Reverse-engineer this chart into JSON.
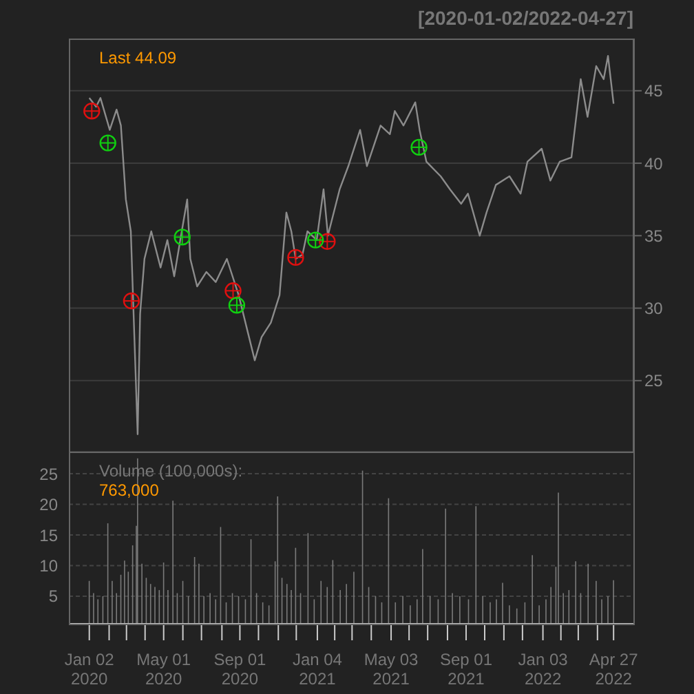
{
  "chart_data": [
    {
      "type": "line",
      "title": "[2020-01-02/2022-04-27]",
      "annotations": [
        "Last 44.09"
      ],
      "xlim": [
        "2019-11-30",
        "2022-05-29"
      ],
      "ylim": [
        20.1,
        48.6
      ],
      "yticks": [
        25,
        30,
        35,
        40,
        45
      ],
      "grid": "y",
      "tick_labels": "y",
      "series": [
        {
          "type": "line",
          "color": "#8c8c8c",
          "marker": "none",
          "x": [
            "2020-01-02",
            "2020-01-13",
            "2020-01-20",
            "2020-02-04",
            "2020-02-15",
            "2020-02-22",
            "2020-03-01",
            "2020-03-09",
            "2020-03-20",
            "2020-03-24",
            "2020-03-31",
            "2020-04-11",
            "2020-04-26",
            "2020-05-07",
            "2020-05-18",
            "2020-05-29",
            "2020-06-08",
            "2020-06-13",
            "2020-06-24",
            "2020-07-09",
            "2020-07-24",
            "2020-08-11",
            "2020-08-30",
            "2020-09-14",
            "2020-09-25",
            "2020-10-06",
            "2020-10-21",
            "2020-11-04",
            "2020-11-15",
            "2020-11-23",
            "2020-11-30",
            "2020-12-11",
            "2020-12-19",
            "2021-01-03",
            "2021-01-14",
            "2021-01-21",
            "2021-02-09",
            "2021-02-23",
            "2021-03-14",
            "2021-03-25",
            "2021-04-16",
            "2021-05-01",
            "2021-05-09",
            "2021-05-23",
            "2021-06-11",
            "2021-06-18",
            "2021-06-29",
            "2021-07-22",
            "2021-08-06",
            "2021-08-24",
            "2021-09-04",
            "2021-09-23",
            "2021-10-04",
            "2021-10-19",
            "2021-11-10",
            "2021-11-28",
            "2021-12-09",
            "2022-01-01",
            "2022-01-15",
            "2022-01-30",
            "2022-02-18",
            "2022-03-05",
            "2022-03-16",
            "2022-03-30",
            "2022-04-11",
            "2022-04-18",
            "2022-04-27"
          ],
          "values": [
            44.5,
            43.9,
            44.5,
            42.3,
            43.7,
            42.6,
            37.5,
            35.3,
            21.3,
            29.6,
            33.4,
            35.3,
            32.8,
            34.7,
            32.2,
            35.0,
            37.5,
            33.4,
            31.5,
            32.5,
            31.8,
            33.4,
            30.9,
            28.3,
            26.4,
            28.0,
            29.0,
            30.9,
            36.6,
            35.3,
            33.4,
            33.7,
            35.3,
            34.7,
            38.2,
            35.0,
            38.2,
            39.8,
            42.3,
            39.8,
            42.6,
            42.0,
            43.6,
            42.6,
            44.2,
            42.3,
            40.1,
            39.1,
            38.2,
            37.2,
            37.9,
            35.0,
            36.6,
            38.5,
            39.1,
            37.9,
            40.1,
            41.0,
            38.8,
            40.1,
            40.4,
            45.8,
            43.2,
            46.7,
            45.8,
            47.4,
            44.1
          ]
        },
        {
          "type": "scatter",
          "color": "#e01010",
          "marker": "circle",
          "x": [
            "2020-01-06",
            "2020-03-10",
            "2020-08-21",
            "2020-11-30",
            "2021-01-20"
          ],
          "values": [
            43.6,
            30.5,
            31.2,
            33.5,
            34.6
          ]
        },
        {
          "type": "scatter",
          "color": "#10d010",
          "marker": "circle",
          "x": [
            "2020-02-01",
            "2020-05-31",
            "2020-08-27",
            "2021-01-01",
            "2021-06-17"
          ],
          "values": [
            41.4,
            34.9,
            30.2,
            34.7,
            41.1
          ]
        }
      ]
    },
    {
      "type": "bar",
      "annotations": [
        "Volume (100,000s):",
        "763,000"
      ],
      "xlim": [
        "2019-11-30",
        "2022-05-29"
      ],
      "ylim": [
        0.5,
        28.6
      ],
      "yticks": [
        5,
        10,
        15,
        20,
        25
      ],
      "grid": "y",
      "color": "#7a7a7a",
      "xticks": [
        {
          "value": "2020-01-02",
          "label": "Jan 02\n2020"
        },
        {
          "value": "2020-02-03",
          "label": null
        },
        {
          "value": "2020-03-02",
          "label": null
        },
        {
          "value": "2020-04-01",
          "label": null
        },
        {
          "value": "2020-05-01",
          "label": "May 01\n2020"
        },
        {
          "value": "2020-06-01",
          "label": null
        },
        {
          "value": "2020-07-01",
          "label": null
        },
        {
          "value": "2020-08-03",
          "label": null
        },
        {
          "value": "2020-09-01",
          "label": "Sep 01\n2020"
        },
        {
          "value": "2020-10-01",
          "label": null
        },
        {
          "value": "2020-11-02",
          "label": null
        },
        {
          "value": "2020-12-01",
          "label": null
        },
        {
          "value": "2021-01-04",
          "label": "Jan 04\n2021"
        },
        {
          "value": "2021-02-01",
          "label": null
        },
        {
          "value": "2021-03-01",
          "label": null
        },
        {
          "value": "2021-04-01",
          "label": null
        },
        {
          "value": "2021-05-03",
          "label": "May 03\n2021"
        },
        {
          "value": "2021-06-01",
          "label": null
        },
        {
          "value": "2021-07-01",
          "label": null
        },
        {
          "value": "2021-08-02",
          "label": null
        },
        {
          "value": "2021-09-01",
          "label": "Sep 01\n2021"
        },
        {
          "value": "2021-10-01",
          "label": null
        },
        {
          "value": "2021-11-01",
          "label": null
        },
        {
          "value": "2021-12-01",
          "label": null
        },
        {
          "value": "2022-01-03",
          "label": "Jan 03\n2022"
        },
        {
          "value": "2022-02-01",
          "label": null
        },
        {
          "value": "2022-03-01",
          "label": null
        },
        {
          "value": "2022-04-01",
          "label": null
        },
        {
          "value": "2022-04-27",
          "label": "Apr 27\n2022"
        }
      ],
      "x": [
        "2020-01-02",
        "2020-01-09",
        "2020-01-16",
        "2020-01-24",
        "2020-02-01",
        "2020-02-08",
        "2020-02-15",
        "2020-02-22",
        "2020-02-28",
        "2020-03-05",
        "2020-03-12",
        "2020-03-18",
        "2020-03-20",
        "2020-03-27",
        "2020-04-03",
        "2020-04-10",
        "2020-04-17",
        "2020-04-24",
        "2020-05-01",
        "2020-05-08",
        "2020-05-16",
        "2020-05-23",
        "2020-06-01",
        "2020-06-10",
        "2020-06-20",
        "2020-06-27",
        "2020-07-05",
        "2020-07-15",
        "2020-07-24",
        "2020-08-01",
        "2020-08-10",
        "2020-08-20",
        "2020-08-30",
        "2020-09-10",
        "2020-09-19",
        "2020-09-28",
        "2020-10-08",
        "2020-10-18",
        "2020-10-28",
        "2020-11-01",
        "2020-11-08",
        "2020-11-16",
        "2020-11-23",
        "2020-11-30",
        "2020-12-08",
        "2020-12-20",
        "2020-12-30",
        "2021-01-10",
        "2021-01-20",
        "2021-01-29",
        "2021-02-10",
        "2021-02-20",
        "2021-03-04",
        "2021-03-18",
        "2021-03-28",
        "2021-04-08",
        "2021-04-18",
        "2021-04-29",
        "2021-05-10",
        "2021-05-22",
        "2021-06-03",
        "2021-06-14",
        "2021-06-23",
        "2021-07-05",
        "2021-07-18",
        "2021-07-30",
        "2021-08-10",
        "2021-08-22",
        "2021-09-05",
        "2021-09-17",
        "2021-09-28",
        "2021-10-10",
        "2021-10-20",
        "2021-10-30",
        "2021-11-10",
        "2021-11-22",
        "2021-12-05",
        "2021-12-17",
        "2021-12-28",
        "2022-01-08",
        "2022-01-16",
        "2022-01-24",
        "2022-01-28",
        "2022-02-05",
        "2022-02-14",
        "2022-02-25",
        "2022-03-05",
        "2022-03-17",
        "2022-03-30",
        "2022-04-08",
        "2022-04-18",
        "2022-04-27"
      ],
      "values": [
        7.5,
        5.5,
        4.5,
        5.0,
        16.9,
        7.5,
        5.5,
        8.5,
        10.8,
        9.0,
        13.3,
        16.5,
        27.5,
        10.3,
        8.0,
        7.0,
        6.5,
        6.0,
        10.5,
        6.0,
        20.6,
        5.5,
        7.5,
        5.0,
        11.4,
        10.3,
        5.0,
        5.5,
        4.5,
        16.3,
        4.0,
        5.5,
        5.0,
        4.5,
        14.3,
        5.5,
        4.0,
        3.5,
        10.7,
        21.3,
        8.0,
        7.0,
        6.0,
        12.9,
        5.5,
        15.3,
        4.5,
        7.5,
        6.5,
        10.9,
        6.0,
        7.0,
        9.0,
        25.5,
        6.5,
        5.0,
        4.0,
        21.0,
        4.0,
        5.0,
        3.5,
        4.5,
        12.7,
        5.0,
        4.5,
        19.3,
        5.5,
        5.0,
        4.5,
        19.7,
        5.0,
        4.0,
        4.5,
        7.2,
        3.5,
        3.0,
        4.0,
        11.7,
        3.5,
        4.5,
        6.5,
        9.8,
        21.9,
        5.5,
        6.0,
        10.7,
        5.5,
        10.3,
        7.5,
        4.5,
        5.0,
        7.6
      ]
    }
  ]
}
